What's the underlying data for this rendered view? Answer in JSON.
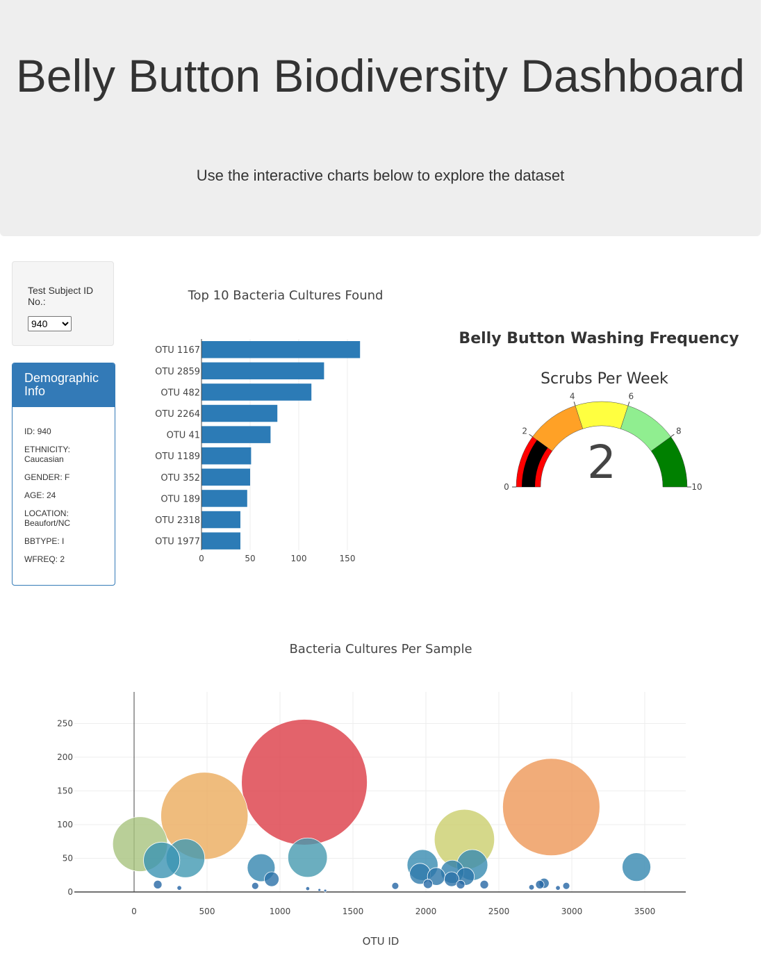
{
  "header": {
    "title": "Belly Button Biodiversity Dashboard",
    "subtitle": "Use the interactive charts below to explore the dataset"
  },
  "selector": {
    "label": "Test Subject ID No.:",
    "selected": "940"
  },
  "demographics": {
    "title": "Demographic Info",
    "items": [
      "ID: 940",
      "ETHNICITY: Caucasian",
      "GENDER: F",
      "AGE: 24",
      "LOCATION: Beaufort/NC",
      "BBTYPE: I",
      "WFREQ: 2"
    ]
  },
  "colors": {
    "accent": "#337ab7",
    "bar": "#2c7bb6"
  },
  "chart_data": [
    {
      "type": "bar",
      "orientation": "horizontal",
      "title": "Top 10 Bacteria Cultures Found",
      "categories": [
        "OTU 1167",
        "OTU 2859",
        "OTU 482",
        "OTU 2264",
        "OTU 41",
        "OTU 1189",
        "OTU 352",
        "OTU 189",
        "OTU 2318",
        "OTU 1977"
      ],
      "values": [
        163,
        126,
        113,
        78,
        71,
        51,
        50,
        47,
        40,
        40
      ],
      "xlim": [
        0,
        170
      ],
      "xticks": [
        0,
        50,
        100,
        150
      ]
    },
    {
      "type": "gauge",
      "title": "Belly Button Washing Frequency",
      "subtitle": "Scrubs Per Week",
      "value": 2,
      "range": [
        0,
        10
      ],
      "ticks": [
        0,
        2,
        4,
        6,
        8,
        10
      ],
      "steps": [
        {
          "range": [
            0,
            2
          ],
          "color": "#ff0000"
        },
        {
          "range": [
            2,
            4
          ],
          "color": "#ffa126"
        },
        {
          "range": [
            4,
            6
          ],
          "color": "#ffff40"
        },
        {
          "range": [
            6,
            8
          ],
          "color": "#90ee90"
        },
        {
          "range": [
            8,
            10
          ],
          "color": "#008000"
        }
      ],
      "bar_color": "#000000"
    },
    {
      "type": "scatter",
      "title": "Bacteria Cultures Per Sample",
      "xlabel": "OTU ID",
      "ylabel": "",
      "xlim": [
        -400,
        3800
      ],
      "ylim": [
        0,
        300
      ],
      "xticks": [
        0,
        500,
        1000,
        1500,
        2000,
        2500,
        3000,
        3500
      ],
      "yticks": [
        0,
        50,
        100,
        150,
        200,
        250
      ],
      "points": [
        [
          1167,
          163
        ],
        [
          2859,
          126
        ],
        [
          482,
          113
        ],
        [
          2264,
          78
        ],
        [
          41,
          71
        ],
        [
          1189,
          51
        ],
        [
          352,
          50
        ],
        [
          189,
          47
        ],
        [
          2318,
          40
        ],
        [
          1977,
          40
        ],
        [
          3443,
          37
        ],
        [
          871,
          36
        ],
        [
          1960,
          27
        ],
        [
          2181,
          30
        ],
        [
          2071,
          23
        ],
        [
          2271,
          23
        ],
        [
          943,
          19
        ],
        [
          2176,
          19
        ],
        [
          2014,
          12
        ],
        [
          2238,
          11
        ],
        [
          2400,
          11
        ],
        [
          2781,
          11
        ],
        [
          2810,
          13
        ],
        [
          162,
          11
        ],
        [
          830,
          9
        ],
        [
          1790,
          9
        ],
        [
          2962,
          9
        ],
        [
          310,
          6
        ],
        [
          1190,
          5
        ],
        [
          2905,
          6
        ],
        [
          2724,
          7
        ],
        [
          1270,
          3
        ],
        [
          1310,
          2
        ]
      ]
    }
  ]
}
